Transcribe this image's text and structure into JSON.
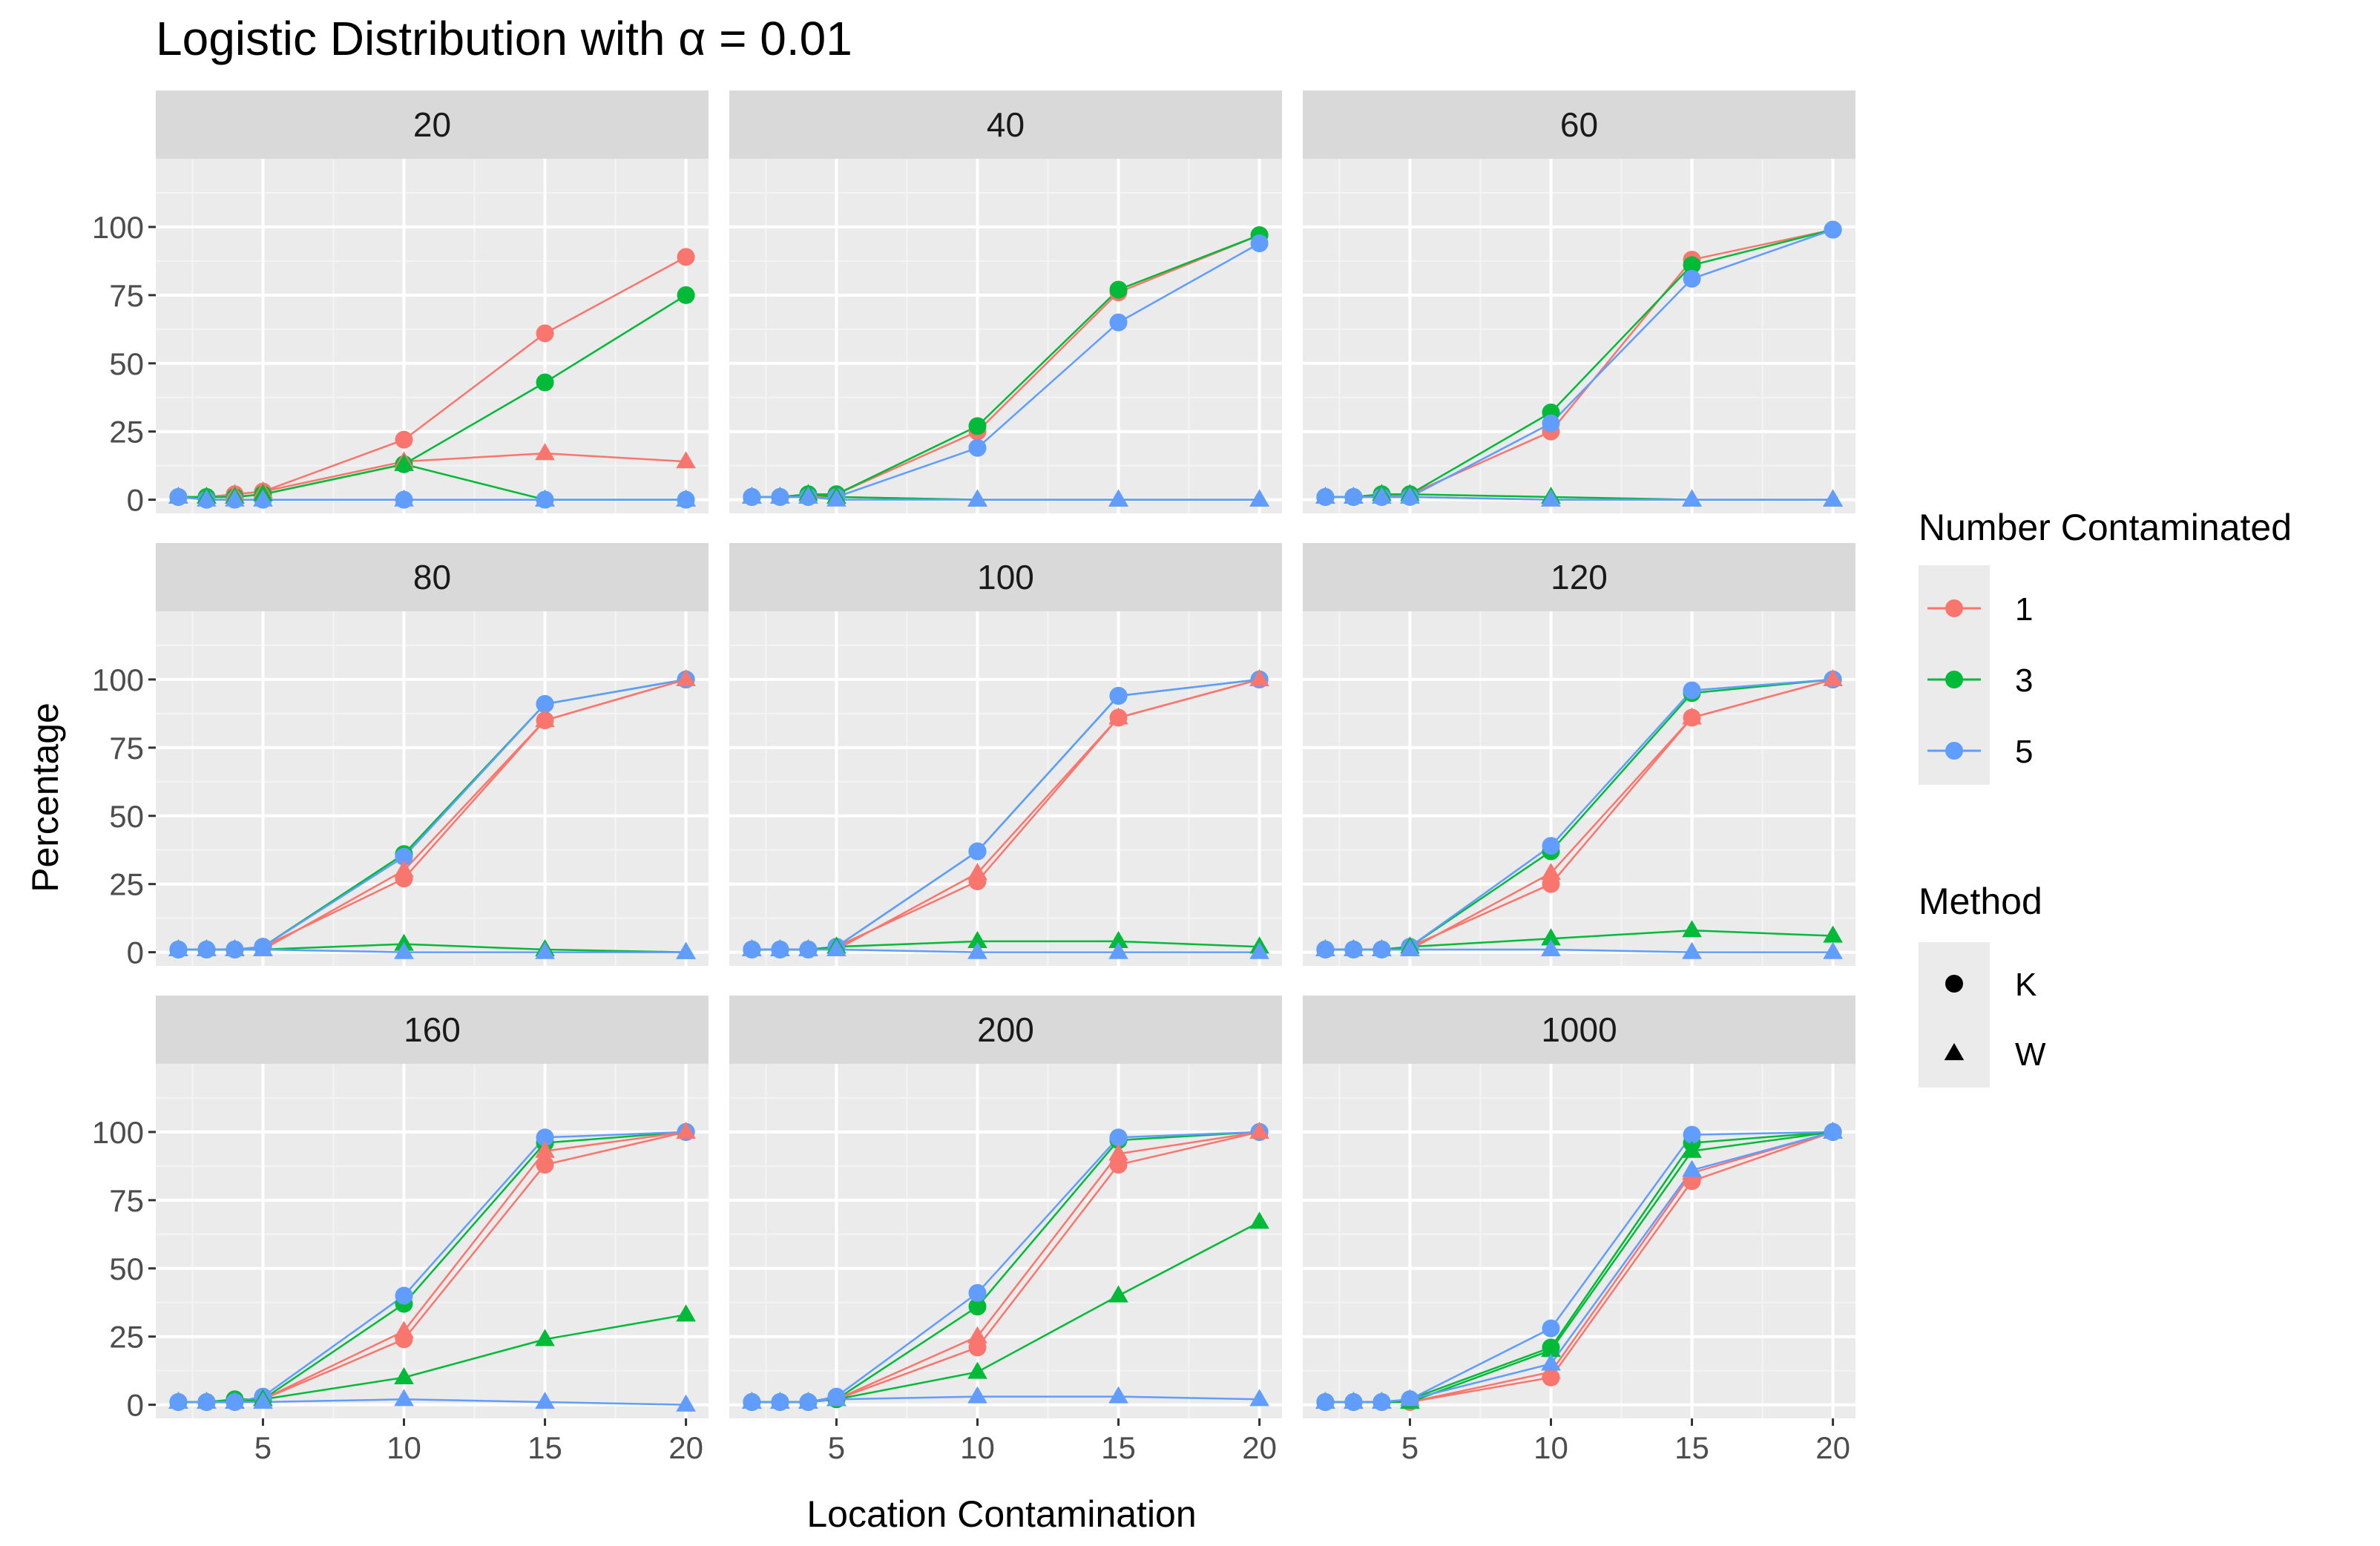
{
  "chart_data": {
    "type": "line",
    "title": "Logistic Distribution with α = 0.01",
    "xlabel": "Location Contamination",
    "ylabel": "Percentage",
    "xlim": [
      1.2,
      20.8
    ],
    "ylim": [
      -5,
      125
    ],
    "x_ticks": [
      5,
      10,
      15,
      20
    ],
    "y_ticks": [
      0,
      25,
      50,
      75,
      100
    ],
    "x": [
      2,
      3,
      4,
      5,
      10,
      15,
      20
    ],
    "colors": {
      "1": "#F8766D",
      "3": "#00BA38",
      "5": "#619CFF"
    },
    "legend": {
      "number_title": "Number Contaminated",
      "number_labels": [
        "1",
        "3",
        "5"
      ],
      "method_title": "Method",
      "method_labels": [
        "K",
        "W"
      ]
    },
    "panels": [
      {
        "label": "20",
        "series": [
          {
            "number": "1",
            "method": "K",
            "values": [
              1,
              1,
              2,
              3,
              22,
              61,
              89
            ]
          },
          {
            "number": "3",
            "method": "K",
            "values": [
              1,
              1,
              1,
              2,
              13,
              43,
              75
            ]
          },
          {
            "number": "5",
            "method": "K",
            "values": [
              1,
              0,
              0,
              0,
              0,
              0,
              0
            ]
          },
          {
            "number": "1",
            "method": "W",
            "values": [
              1,
              1,
              2,
              3,
              14,
              17,
              14
            ]
          },
          {
            "number": "3",
            "method": "W",
            "values": [
              1,
              1,
              1,
              2,
              13,
              0,
              0
            ]
          },
          {
            "number": "5",
            "method": "W",
            "values": [
              1,
              0,
              0,
              0,
              0,
              0,
              0
            ]
          }
        ]
      },
      {
        "label": "40",
        "series": [
          {
            "number": "1",
            "method": "K",
            "values": [
              1,
              1,
              1,
              2,
              25,
              76,
              97
            ]
          },
          {
            "number": "3",
            "method": "K",
            "values": [
              1,
              1,
              2,
              2,
              27,
              77,
              97
            ]
          },
          {
            "number": "5",
            "method": "K",
            "values": [
              1,
              1,
              1,
              1,
              19,
              65,
              94
            ]
          },
          {
            "number": "1",
            "method": "W",
            "values": [
              1,
              1,
              1,
              1,
              0,
              0,
              0
            ]
          },
          {
            "number": "3",
            "method": "W",
            "values": [
              1,
              1,
              2,
              1,
              0,
              0,
              0
            ]
          },
          {
            "number": "5",
            "method": "W",
            "values": [
              1,
              1,
              1,
              0,
              0,
              0,
              0
            ]
          }
        ]
      },
      {
        "label": "60",
        "series": [
          {
            "number": "1",
            "method": "K",
            "values": [
              1,
              1,
              1,
              2,
              25,
              88,
              99
            ]
          },
          {
            "number": "3",
            "method": "K",
            "values": [
              1,
              1,
              2,
              2,
              32,
              86,
              99
            ]
          },
          {
            "number": "5",
            "method": "K",
            "values": [
              1,
              1,
              1,
              1,
              28,
              81,
              99
            ]
          },
          {
            "number": "1",
            "method": "W",
            "values": [
              1,
              1,
              1,
              1,
              0,
              0,
              0
            ]
          },
          {
            "number": "3",
            "method": "W",
            "values": [
              1,
              1,
              2,
              2,
              1,
              0,
              0
            ]
          },
          {
            "number": "5",
            "method": "W",
            "values": [
              1,
              1,
              1,
              1,
              0,
              0,
              0
            ]
          }
        ]
      },
      {
        "label": "80",
        "series": [
          {
            "number": "1",
            "method": "K",
            "values": [
              1,
              1,
              1,
              2,
              27,
              85,
              100
            ]
          },
          {
            "number": "3",
            "method": "K",
            "values": [
              1,
              1,
              1,
              2,
              36,
              91,
              100
            ]
          },
          {
            "number": "5",
            "method": "K",
            "values": [
              1,
              1,
              1,
              2,
              35,
              91,
              100
            ]
          },
          {
            "number": "1",
            "method": "W",
            "values": [
              1,
              1,
              1,
              1,
              30,
              85,
              100
            ]
          },
          {
            "number": "3",
            "method": "W",
            "values": [
              1,
              1,
              1,
              1,
              3,
              1,
              0
            ]
          },
          {
            "number": "5",
            "method": "W",
            "values": [
              1,
              1,
              1,
              1,
              0,
              0,
              0
            ]
          }
        ]
      },
      {
        "label": "100",
        "series": [
          {
            "number": "1",
            "method": "K",
            "values": [
              1,
              1,
              1,
              2,
              26,
              86,
              100
            ]
          },
          {
            "number": "3",
            "method": "K",
            "values": [
              1,
              1,
              1,
              2,
              37,
              94,
              100
            ]
          },
          {
            "number": "5",
            "method": "K",
            "values": [
              1,
              1,
              1,
              2,
              37,
              94,
              100
            ]
          },
          {
            "number": "1",
            "method": "W",
            "values": [
              1,
              1,
              1,
              1,
              29,
              86,
              100
            ]
          },
          {
            "number": "3",
            "method": "W",
            "values": [
              1,
              1,
              1,
              2,
              4,
              4,
              2
            ]
          },
          {
            "number": "5",
            "method": "W",
            "values": [
              1,
              1,
              1,
              1,
              0,
              0,
              0
            ]
          }
        ]
      },
      {
        "label": "120",
        "series": [
          {
            "number": "1",
            "method": "K",
            "values": [
              1,
              1,
              1,
              2,
              25,
              86,
              100
            ]
          },
          {
            "number": "3",
            "method": "K",
            "values": [
              1,
              1,
              1,
              2,
              37,
              95,
              100
            ]
          },
          {
            "number": "5",
            "method": "K",
            "values": [
              1,
              1,
              1,
              2,
              39,
              96,
              100
            ]
          },
          {
            "number": "1",
            "method": "W",
            "values": [
              1,
              1,
              1,
              1,
              29,
              86,
              100
            ]
          },
          {
            "number": "3",
            "method": "W",
            "values": [
              1,
              1,
              1,
              2,
              5,
              8,
              6
            ]
          },
          {
            "number": "5",
            "method": "W",
            "values": [
              1,
              1,
              1,
              1,
              1,
              0,
              0
            ]
          }
        ]
      },
      {
        "label": "160",
        "series": [
          {
            "number": "1",
            "method": "K",
            "values": [
              1,
              1,
              1,
              2,
              24,
              88,
              100
            ]
          },
          {
            "number": "3",
            "method": "K",
            "values": [
              1,
              1,
              2,
              2,
              37,
              96,
              100
            ]
          },
          {
            "number": "5",
            "method": "K",
            "values": [
              1,
              1,
              1,
              3,
              40,
              98,
              100
            ]
          },
          {
            "number": "1",
            "method": "W",
            "values": [
              1,
              1,
              1,
              2,
              27,
              93,
              100
            ]
          },
          {
            "number": "3",
            "method": "W",
            "values": [
              1,
              1,
              1,
              2,
              10,
              24,
              33
            ]
          },
          {
            "number": "5",
            "method": "W",
            "values": [
              1,
              1,
              1,
              1,
              2,
              1,
              0
            ]
          }
        ]
      },
      {
        "label": "200",
        "series": [
          {
            "number": "1",
            "method": "K",
            "values": [
              1,
              1,
              1,
              2,
              21,
              88,
              100
            ]
          },
          {
            "number": "3",
            "method": "K",
            "values": [
              1,
              1,
              1,
              2,
              36,
              97,
              100
            ]
          },
          {
            "number": "5",
            "method": "K",
            "values": [
              1,
              1,
              1,
              3,
              41,
              98,
              100
            ]
          },
          {
            "number": "1",
            "method": "W",
            "values": [
              1,
              1,
              1,
              2,
              25,
              92,
              100
            ]
          },
          {
            "number": "3",
            "method": "W",
            "values": [
              1,
              1,
              1,
              2,
              12,
              40,
              67
            ]
          },
          {
            "number": "5",
            "method": "W",
            "values": [
              1,
              1,
              1,
              2,
              3,
              3,
              2
            ]
          }
        ]
      },
      {
        "label": "1000",
        "series": [
          {
            "number": "1",
            "method": "K",
            "values": [
              1,
              1,
              1,
              1,
              10,
              82,
              100
            ]
          },
          {
            "number": "3",
            "method": "K",
            "values": [
              1,
              1,
              1,
              2,
              21,
              96,
              100
            ]
          },
          {
            "number": "5",
            "method": "K",
            "values": [
              1,
              1,
              1,
              2,
              28,
              99,
              100
            ]
          },
          {
            "number": "1",
            "method": "W",
            "values": [
              1,
              1,
              1,
              1,
              12,
              85,
              100
            ]
          },
          {
            "number": "3",
            "method": "W",
            "values": [
              1,
              1,
              1,
              1,
              20,
              93,
              100
            ]
          },
          {
            "number": "5",
            "method": "W",
            "values": [
              1,
              1,
              1,
              2,
              15,
              86,
              100
            ]
          }
        ]
      }
    ]
  }
}
